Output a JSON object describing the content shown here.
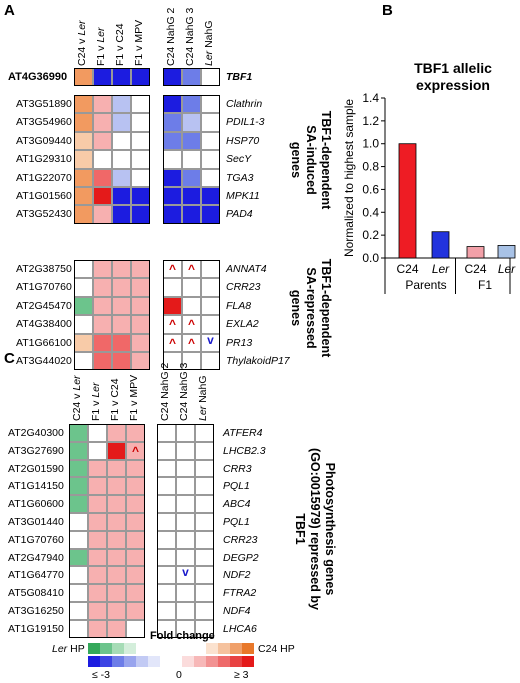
{
  "panels": {
    "a": "A",
    "b": "B",
    "c": "C"
  },
  "colors": {
    "red_symbol": "#cc0000",
    "blue_symbol": "#1a1acc",
    "bar_c24": "#ee1c24",
    "bar_ler": "#2233dd",
    "bar_f1_c24": "#f2a0a8",
    "bar_f1_ler": "#a8c2e6"
  },
  "panelA": {
    "left_columns": [
      "C24 v Ler",
      "F1 v Ler",
      "F1 v C24",
      "F1 v MPV"
    ],
    "right_columns": [
      "C24 NahG 2",
      "C24 NahG 3",
      "Ler NahG"
    ],
    "blocks": [
      {
        "title": "",
        "rows": [
          {
            "id": "AT4G36990",
            "gene": "TBF1",
            "left": [
              2,
              -3,
              -3,
              -3
            ],
            "right": [
              -3,
              -2,
              0
            ],
            "marks": [
              "",
              "",
              ""
            ]
          }
        ]
      },
      {
        "title": "TBF1-dependent SA-induced genes",
        "rows": [
          {
            "id": "AT3G51890",
            "gene": "Clathrin",
            "left": [
              2,
              1,
              -1,
              0
            ],
            "right": [
              -3,
              -2,
              0
            ],
            "marks": [
              "",
              "",
              ""
            ]
          },
          {
            "id": "AT3G54960",
            "gene": "PDIL1-3",
            "left": [
              2,
              1,
              -1,
              0
            ],
            "right": [
              -2,
              -1,
              0
            ],
            "marks": [
              "",
              "",
              ""
            ]
          },
          {
            "id": "AT3G09440",
            "gene": "HSP70",
            "left": [
              1,
              1,
              0,
              0
            ],
            "right": [
              -2,
              -2,
              0
            ],
            "marks": [
              "",
              "",
              ""
            ]
          },
          {
            "id": "AT1G29310",
            "gene": "SecY",
            "left": [
              1,
              0,
              0,
              0
            ],
            "right": [
              0,
              0,
              0
            ],
            "marks": [
              "",
              "",
              ""
            ]
          },
          {
            "id": "AT1G22070",
            "gene": "TGA3",
            "left": [
              2,
              2,
              -1,
              0
            ],
            "right": [
              -3,
              -2,
              0
            ],
            "marks": [
              "",
              "",
              ""
            ]
          },
          {
            "id": "AT1G01560",
            "gene": "MPK11",
            "left": [
              2,
              3,
              -3,
              -3
            ],
            "right": [
              -3,
              -3,
              -3
            ],
            "marks": [
              "",
              "",
              ""
            ]
          },
          {
            "id": "AT3G52430",
            "gene": "PAD4",
            "left": [
              2,
              1,
              -3,
              -3
            ],
            "right": [
              -3,
              -3,
              -3
            ],
            "marks": [
              "",
              "",
              ""
            ]
          }
        ]
      },
      {
        "title": "TBF1-dependent SA-repressed genes",
        "rows": [
          {
            "id": "AT2G38750",
            "gene": "ANNAT4",
            "left": [
              0,
              1,
              1,
              1
            ],
            "right": [
              0,
              0,
              0
            ],
            "marks": [
              "^",
              "^",
              ""
            ]
          },
          {
            "id": "AT1G70760",
            "gene": "CRR23",
            "left": [
              0,
              1,
              1,
              1
            ],
            "right": [
              0,
              0,
              0
            ],
            "marks": [
              "",
              "",
              ""
            ]
          },
          {
            "id": "AT2G45470",
            "gene": "FLA8",
            "left": [
              -2,
              1,
              1,
              1
            ],
            "right": [
              3,
              0,
              0
            ],
            "marks": [
              "",
              "",
              ""
            ]
          },
          {
            "id": "AT4G38400",
            "gene": "EXLA2",
            "left": [
              0,
              1,
              1,
              1
            ],
            "right": [
              0,
              0,
              0
            ],
            "marks": [
              "^",
              "^",
              ""
            ]
          },
          {
            "id": "AT1G66100",
            "gene": "PR13",
            "left": [
              1,
              2,
              2,
              1
            ],
            "right": [
              0,
              0,
              0
            ],
            "marks": [
              "^",
              "^",
              "v"
            ]
          },
          {
            "id": "AT3G44020",
            "gene": "ThylakoidP17",
            "left": [
              0,
              2,
              2,
              1
            ],
            "right": [
              0,
              0,
              0
            ],
            "marks": [
              "",
              "",
              ""
            ]
          }
        ]
      }
    ]
  },
  "panelB": {
    "title_line1": "TBF1 allelic",
    "title_line2": "expression",
    "ylabel": "Normalized to highest sample",
    "chart_data": {
      "type": "bar",
      "title": "TBF1 allelic expression",
      "ylabel": "Normalized to highest sample",
      "ylim": [
        0,
        1.4
      ],
      "yticks": [
        "0.0",
        "0.2",
        "0.4",
        "0.6",
        "0.8",
        "1.0",
        "1.2",
        "1.4"
      ],
      "categories": [
        "C24",
        "Ler",
        "C24",
        "Ler"
      ],
      "groups": [
        "Parents",
        "F1"
      ],
      "values": [
        1.0,
        0.23,
        0.1,
        0.11
      ]
    }
  },
  "panelC": {
    "left_columns": [
      "C24 v Ler",
      "F1 v Ler",
      "F1 v C24",
      "F1 v MPV"
    ],
    "right_columns": [
      "C24 NahG 2",
      "C24 NahG 3",
      "Ler NahG"
    ],
    "title": "Photosynthesis genes (GO:0015979) repressed by TBF1",
    "rows": [
      {
        "id": "AT2G40300",
        "gene": "ATFER4",
        "left": [
          -2,
          0,
          1,
          1
        ],
        "right": [
          0,
          0,
          0
        ],
        "marks": [
          "",
          "",
          ""
        ]
      },
      {
        "id": "AT3G27690",
        "gene": "LHCB2.3",
        "left": [
          -2,
          0,
          3,
          1
        ],
        "right": [
          0,
          0,
          0
        ],
        "marks": [
          "",
          "",
          ""
        ],
        "left_marks": [
          "",
          "",
          "",
          "^"
        ]
      },
      {
        "id": "AT2G01590",
        "gene": "CRR3",
        "left": [
          -2,
          1,
          1,
          1
        ],
        "right": [
          0,
          0,
          0
        ],
        "marks": [
          "",
          "",
          ""
        ]
      },
      {
        "id": "AT1G14150",
        "gene": "PQL1",
        "left": [
          -2,
          1,
          1,
          1
        ],
        "right": [
          0,
          0,
          0
        ],
        "marks": [
          "",
          "",
          ""
        ]
      },
      {
        "id": "AT1G60600",
        "gene": "ABC4",
        "left": [
          -2,
          1,
          1,
          1
        ],
        "right": [
          0,
          0,
          0
        ],
        "marks": [
          "",
          "",
          ""
        ]
      },
      {
        "id": "AT3G01440",
        "gene": "PQL1",
        "left": [
          0,
          1,
          1,
          1
        ],
        "right": [
          0,
          0,
          0
        ],
        "marks": [
          "",
          "",
          ""
        ]
      },
      {
        "id": "AT1G70760",
        "gene": "CRR23",
        "left": [
          0,
          1,
          1,
          1
        ],
        "right": [
          0,
          0,
          0
        ],
        "marks": [
          "",
          "",
          ""
        ]
      },
      {
        "id": "AT2G47940",
        "gene": "DEGP2",
        "left": [
          -2,
          1,
          1,
          1
        ],
        "right": [
          0,
          0,
          0
        ],
        "marks": [
          "",
          "",
          ""
        ]
      },
      {
        "id": "AT1G64770",
        "gene": "NDF2",
        "left": [
          0,
          1,
          1,
          1
        ],
        "right": [
          0,
          0,
          0
        ],
        "marks": [
          "",
          "v",
          ""
        ]
      },
      {
        "id": "AT5G08410",
        "gene": "FTRA2",
        "left": [
          0,
          1,
          1,
          1
        ],
        "right": [
          0,
          0,
          0
        ],
        "marks": [
          "",
          "",
          ""
        ]
      },
      {
        "id": "AT3G16250",
        "gene": "NDF4",
        "left": [
          0,
          1,
          1,
          1
        ],
        "right": [
          0,
          0,
          0
        ],
        "marks": [
          "",
          "",
          ""
        ]
      },
      {
        "id": "AT1G19150",
        "gene": "LHCA6",
        "left": [
          0,
          1,
          1,
          0
        ],
        "right": [
          0,
          0,
          0
        ],
        "marks": [
          "",
          "",
          ""
        ]
      }
    ]
  },
  "legend": {
    "title": "Fold change",
    "left_label": "Ler HP",
    "right_label": "C24 HP",
    "min_label": "≤ -3",
    "zero_label": "0",
    "max_label": "≥ 3"
  }
}
